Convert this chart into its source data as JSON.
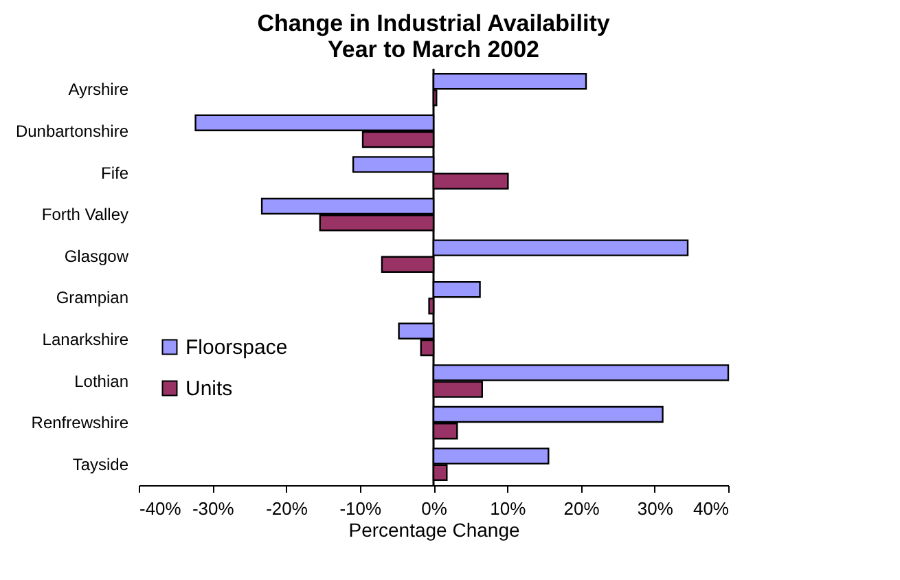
{
  "chart_data": {
    "type": "bar",
    "orientation": "horizontal",
    "title": "Change in Industrial Availability\nYear to March 2002",
    "xlabel": "Percentage Change",
    "categories": [
      "Ayrshire",
      "Dunbartonshire",
      "Fife",
      "Forth Valley",
      "Glasgow",
      "Grampian",
      "Lanarkshire",
      "Lothian",
      "Renfrewshire",
      "Tayside"
    ],
    "series": [
      {
        "name": "Floorspace",
        "color": "#9999ff",
        "values": [
          20.7,
          -32.3,
          -10.9,
          -23.3,
          34.5,
          6.3,
          -4.7,
          40,
          31.1,
          15.6
        ]
      },
      {
        "name": "Units",
        "color": "#993366",
        "values": [
          0.4,
          -9.6,
          10.1,
          -15.4,
          -7.0,
          -0.6,
          -1.7,
          6.6,
          3.2,
          1.8
        ]
      }
    ],
    "xlim": [
      -40,
      40
    ],
    "xticks": [
      {
        "value": -40,
        "label": "-40%"
      },
      {
        "value": -30,
        "label": "-30%"
      },
      {
        "value": -20,
        "label": "-20%"
      },
      {
        "value": -10,
        "label": "-10%"
      },
      {
        "value": 0,
        "label": "0%"
      },
      {
        "value": 10,
        "label": "10%"
      },
      {
        "value": 20,
        "label": "20%"
      },
      {
        "value": 30,
        "label": "30%"
      },
      {
        "value": 40,
        "label": "40%"
      }
    ],
    "ref_lines": [
      {
        "axis": "x",
        "value": 0,
        "color": "#000000"
      }
    ],
    "grid": false,
    "legend": "left"
  }
}
